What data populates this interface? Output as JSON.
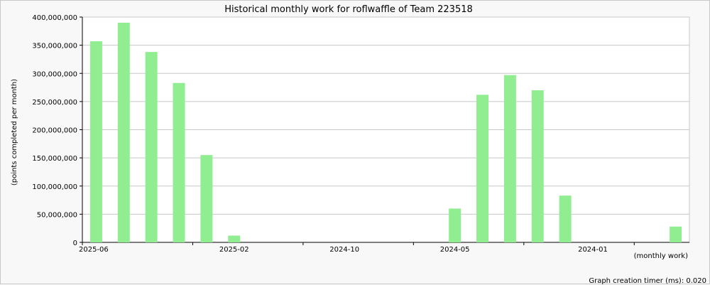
{
  "chart_data": {
    "type": "bar",
    "title": "Historical monthly work for roflwaffle of Team 223518",
    "ylabel": "(points completed per month)",
    "xlabel": "(monthly work)",
    "ylim": [
      0,
      400000000
    ],
    "yticks": [
      0,
      50000000,
      100000000,
      150000000,
      200000000,
      250000000,
      300000000,
      350000000,
      400000000
    ],
    "ytick_labels": [
      "0",
      "50,000,000",
      "100,000,000",
      "150,000,000",
      "200,000,000",
      "250,000,000",
      "300,000,000",
      "350,000,000",
      "400,000,000"
    ],
    "xtick_labels": [
      "2025-06",
      "2025-02",
      "2024-10",
      "2024-05",
      "2024-01"
    ],
    "categories": [
      "2025-06",
      "2025-05",
      "2025-04",
      "2025-03",
      "2025-02",
      "2025-01",
      "2024-12",
      "2024-11",
      "2024-10",
      "2024-09",
      "2024-08",
      "2024-07",
      "2024-06",
      "2024-05",
      "2024-04",
      "2024-03",
      "2024-02",
      "2024-01",
      "2023-12",
      "2023-11",
      "2023-10",
      "2023-09"
    ],
    "values": [
      357000000,
      390000000,
      338000000,
      283000000,
      155000000,
      12000000,
      0,
      0,
      0,
      0,
      0,
      0,
      0,
      60000000,
      262000000,
      297000000,
      270000000,
      83000000,
      0,
      0,
      0,
      28000000
    ],
    "bar_color": "#90ee90",
    "grid": true
  },
  "footer": "Graph creation timer (ms): 0.020"
}
